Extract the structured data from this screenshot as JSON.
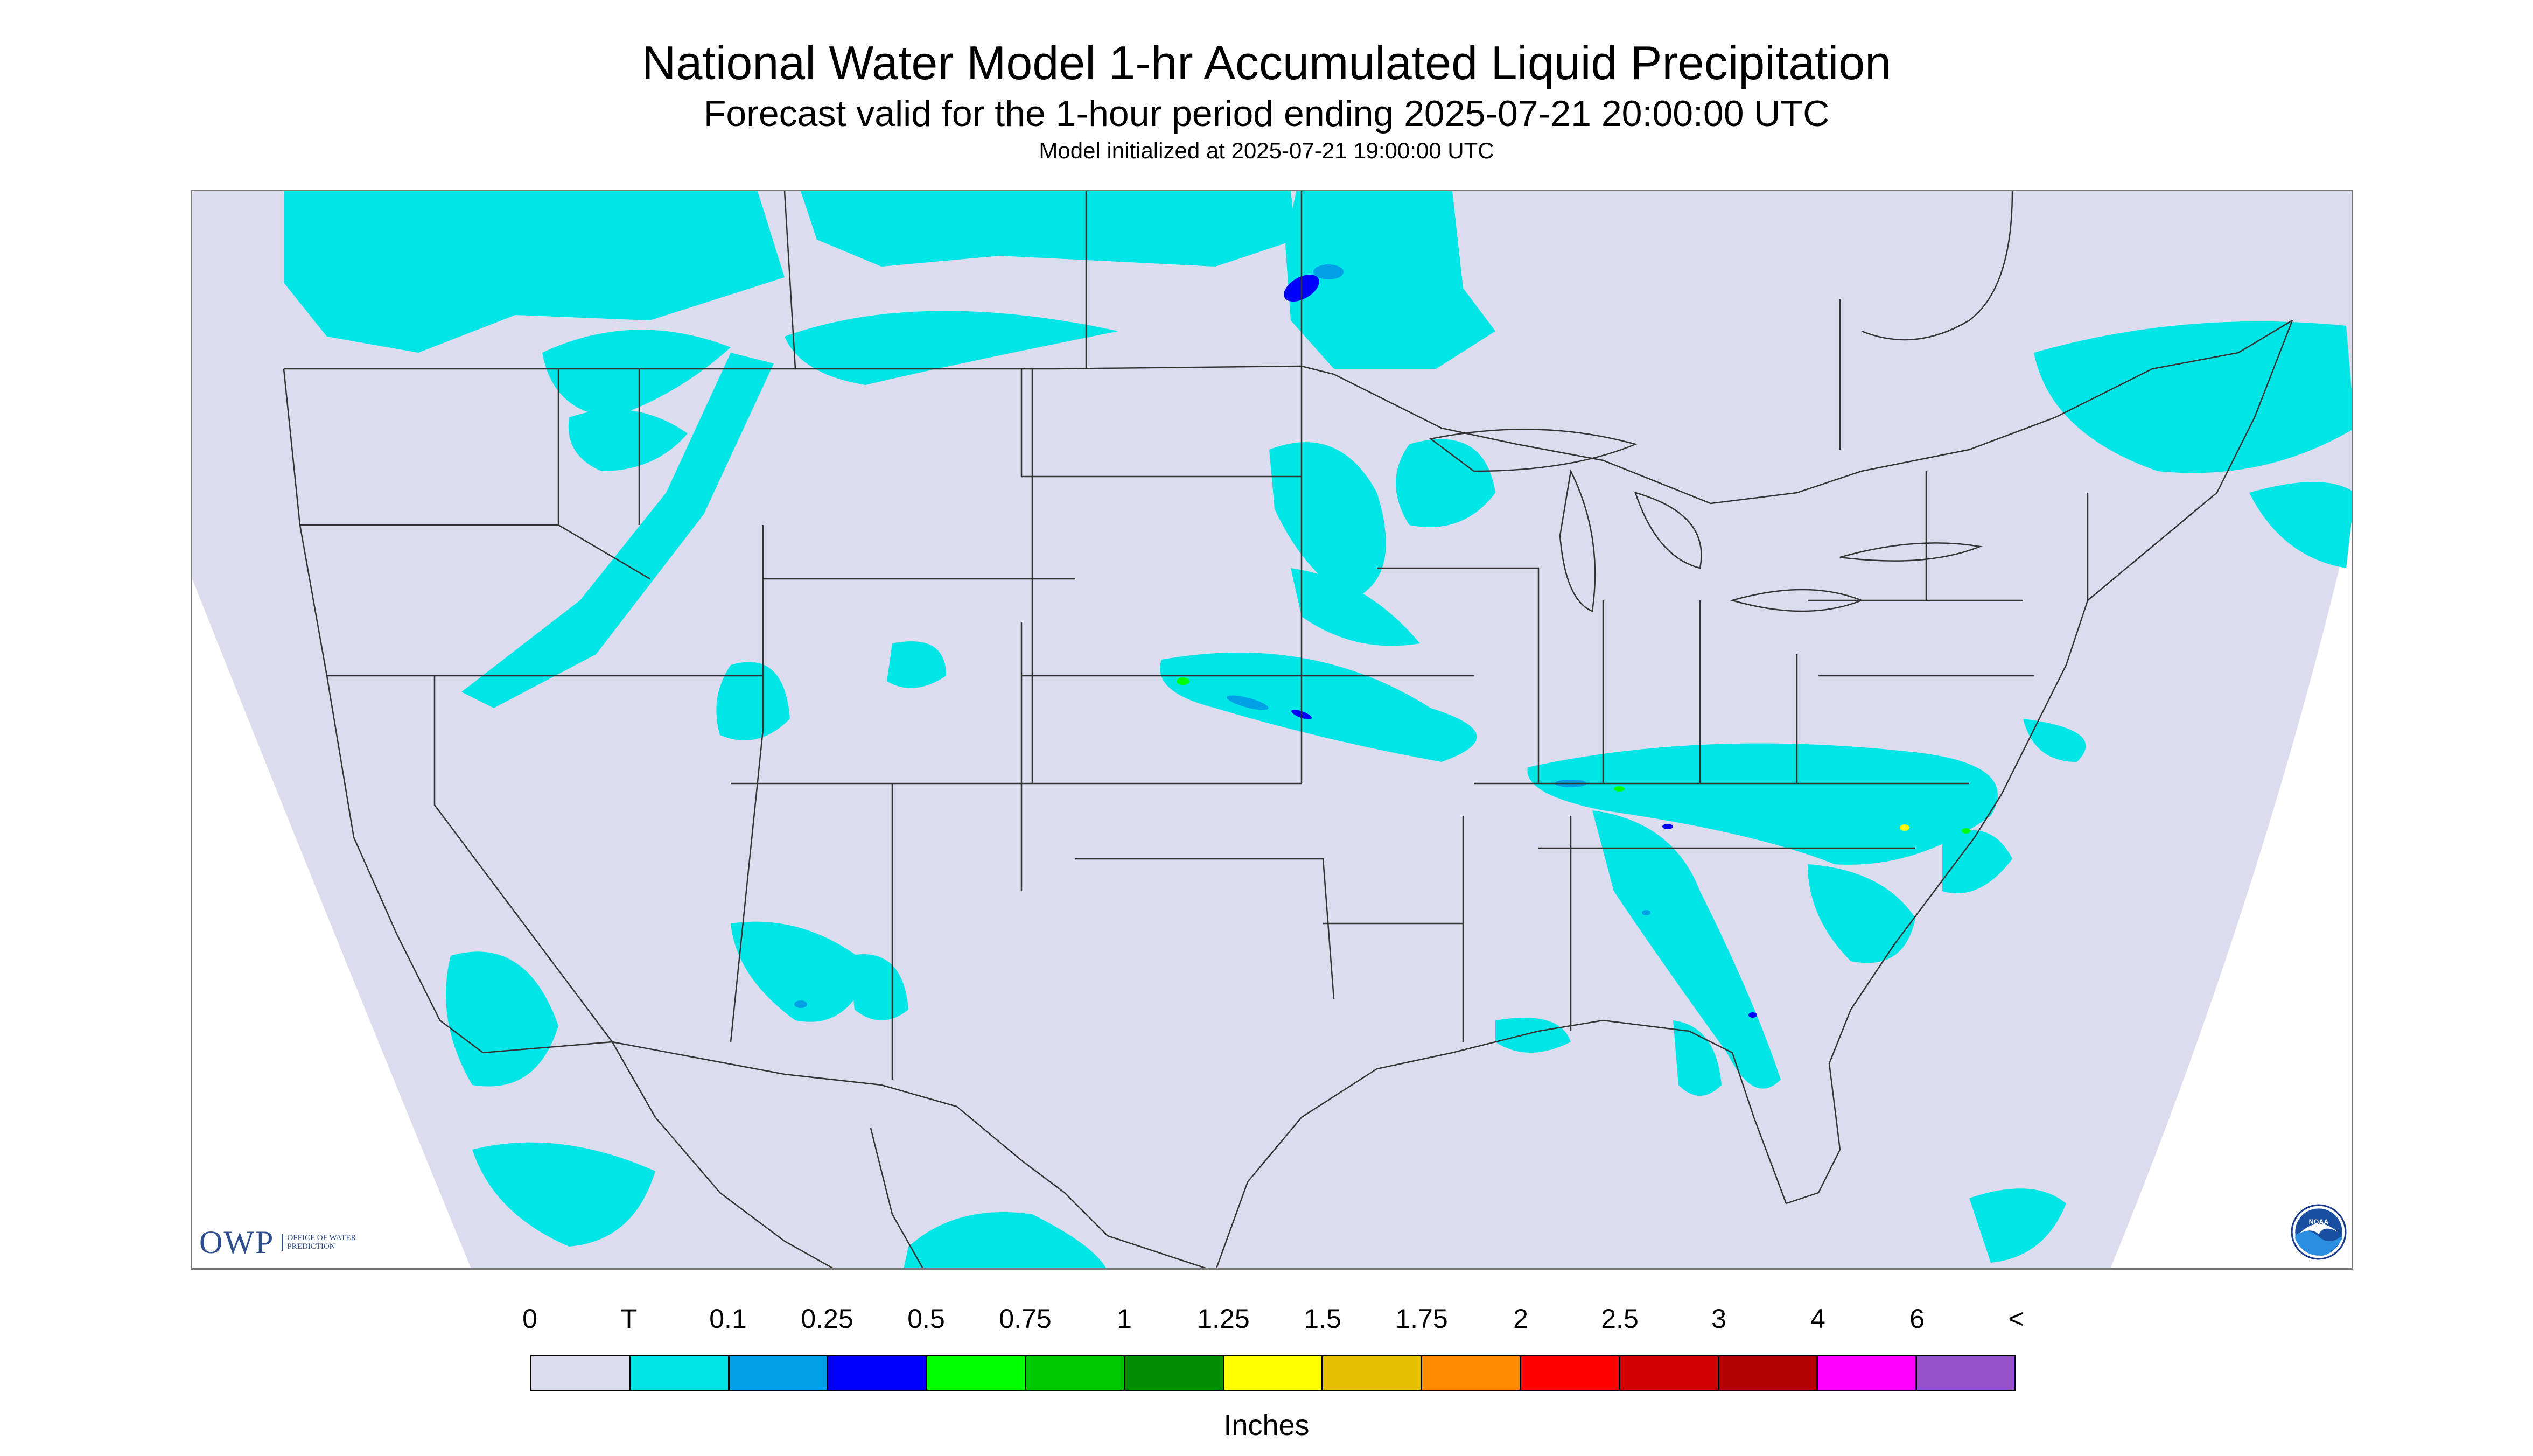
{
  "title": "National Water Model 1-hr Accumulated Liquid Precipitation",
  "subtitle": "Forecast valid for the 1-hour period ending 2025-07-21 20:00:00 UTC",
  "init_line": "Model initialized at 2025-07-21 19:00:00 UTC",
  "logo": {
    "mark": "OWP",
    "sub": "OFFICE OF WATER PREDICTION"
  },
  "noaa_logo_text": "NOAA",
  "legend": {
    "unit": "Inches",
    "tick_labels": [
      "0",
      "T",
      "0.1",
      "0.25",
      "0.5",
      "0.75",
      "1",
      "1.25",
      "1.5",
      "1.75",
      "2",
      "2.5",
      "3",
      "4",
      "6",
      "<"
    ],
    "colors": [
      "#dcdcef",
      "#00e6e6",
      "#00a0e6",
      "#0000ff",
      "#00ff00",
      "#00c800",
      "#008c00",
      "#ffff00",
      "#e6be00",
      "#ff8c00",
      "#ff0000",
      "#d20000",
      "#b40000",
      "#ff00ff",
      "#9650c8"
    ]
  },
  "colors": {
    "no_precip": "#dcdcef",
    "trace": "#00e6e6",
    "light_blue": "#00a0e6",
    "blue": "#0000ff",
    "green": "#00ff00",
    "yellow": "#ffff00",
    "boundary": "#333333",
    "frame": "#777777"
  }
}
